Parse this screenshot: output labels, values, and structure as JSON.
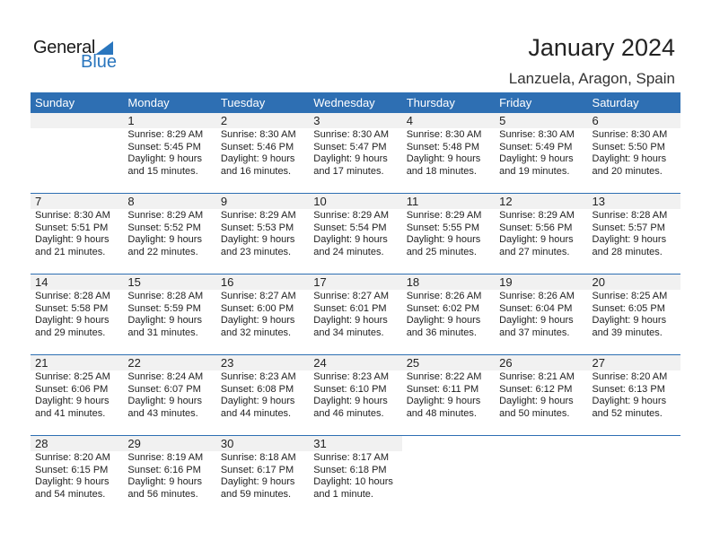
{
  "logo": {
    "text1": "General",
    "text2": "Blue"
  },
  "title": "January 2024",
  "location": "Lanzuela, Aragon, Spain",
  "days": [
    "Sunday",
    "Monday",
    "Tuesday",
    "Wednesday",
    "Thursday",
    "Friday",
    "Saturday"
  ],
  "weeks": [
    [
      null,
      {
        "d": "1",
        "sr": "Sunrise: 8:29 AM",
        "ss": "Sunset: 5:45 PM",
        "dl": "Daylight: 9 hours",
        "dm": "and 15 minutes."
      },
      {
        "d": "2",
        "sr": "Sunrise: 8:30 AM",
        "ss": "Sunset: 5:46 PM",
        "dl": "Daylight: 9 hours",
        "dm": "and 16 minutes."
      },
      {
        "d": "3",
        "sr": "Sunrise: 8:30 AM",
        "ss": "Sunset: 5:47 PM",
        "dl": "Daylight: 9 hours",
        "dm": "and 17 minutes."
      },
      {
        "d": "4",
        "sr": "Sunrise: 8:30 AM",
        "ss": "Sunset: 5:48 PM",
        "dl": "Daylight: 9 hours",
        "dm": "and 18 minutes."
      },
      {
        "d": "5",
        "sr": "Sunrise: 8:30 AM",
        "ss": "Sunset: 5:49 PM",
        "dl": "Daylight: 9 hours",
        "dm": "and 19 minutes."
      },
      {
        "d": "6",
        "sr": "Sunrise: 8:30 AM",
        "ss": "Sunset: 5:50 PM",
        "dl": "Daylight: 9 hours",
        "dm": "and 20 minutes."
      }
    ],
    [
      {
        "d": "7",
        "sr": "Sunrise: 8:30 AM",
        "ss": "Sunset: 5:51 PM",
        "dl": "Daylight: 9 hours",
        "dm": "and 21 minutes."
      },
      {
        "d": "8",
        "sr": "Sunrise: 8:29 AM",
        "ss": "Sunset: 5:52 PM",
        "dl": "Daylight: 9 hours",
        "dm": "and 22 minutes."
      },
      {
        "d": "9",
        "sr": "Sunrise: 8:29 AM",
        "ss": "Sunset: 5:53 PM",
        "dl": "Daylight: 9 hours",
        "dm": "and 23 minutes."
      },
      {
        "d": "10",
        "sr": "Sunrise: 8:29 AM",
        "ss": "Sunset: 5:54 PM",
        "dl": "Daylight: 9 hours",
        "dm": "and 24 minutes."
      },
      {
        "d": "11",
        "sr": "Sunrise: 8:29 AM",
        "ss": "Sunset: 5:55 PM",
        "dl": "Daylight: 9 hours",
        "dm": "and 25 minutes."
      },
      {
        "d": "12",
        "sr": "Sunrise: 8:29 AM",
        "ss": "Sunset: 5:56 PM",
        "dl": "Daylight: 9 hours",
        "dm": "and 27 minutes."
      },
      {
        "d": "13",
        "sr": "Sunrise: 8:28 AM",
        "ss": "Sunset: 5:57 PM",
        "dl": "Daylight: 9 hours",
        "dm": "and 28 minutes."
      }
    ],
    [
      {
        "d": "14",
        "sr": "Sunrise: 8:28 AM",
        "ss": "Sunset: 5:58 PM",
        "dl": "Daylight: 9 hours",
        "dm": "and 29 minutes."
      },
      {
        "d": "15",
        "sr": "Sunrise: 8:28 AM",
        "ss": "Sunset: 5:59 PM",
        "dl": "Daylight: 9 hours",
        "dm": "and 31 minutes."
      },
      {
        "d": "16",
        "sr": "Sunrise: 8:27 AM",
        "ss": "Sunset: 6:00 PM",
        "dl": "Daylight: 9 hours",
        "dm": "and 32 minutes."
      },
      {
        "d": "17",
        "sr": "Sunrise: 8:27 AM",
        "ss": "Sunset: 6:01 PM",
        "dl": "Daylight: 9 hours",
        "dm": "and 34 minutes."
      },
      {
        "d": "18",
        "sr": "Sunrise: 8:26 AM",
        "ss": "Sunset: 6:02 PM",
        "dl": "Daylight: 9 hours",
        "dm": "and 36 minutes."
      },
      {
        "d": "19",
        "sr": "Sunrise: 8:26 AM",
        "ss": "Sunset: 6:04 PM",
        "dl": "Daylight: 9 hours",
        "dm": "and 37 minutes."
      },
      {
        "d": "20",
        "sr": "Sunrise: 8:25 AM",
        "ss": "Sunset: 6:05 PM",
        "dl": "Daylight: 9 hours",
        "dm": "and 39 minutes."
      }
    ],
    [
      {
        "d": "21",
        "sr": "Sunrise: 8:25 AM",
        "ss": "Sunset: 6:06 PM",
        "dl": "Daylight: 9 hours",
        "dm": "and 41 minutes."
      },
      {
        "d": "22",
        "sr": "Sunrise: 8:24 AM",
        "ss": "Sunset: 6:07 PM",
        "dl": "Daylight: 9 hours",
        "dm": "and 43 minutes."
      },
      {
        "d": "23",
        "sr": "Sunrise: 8:23 AM",
        "ss": "Sunset: 6:08 PM",
        "dl": "Daylight: 9 hours",
        "dm": "and 44 minutes."
      },
      {
        "d": "24",
        "sr": "Sunrise: 8:23 AM",
        "ss": "Sunset: 6:10 PM",
        "dl": "Daylight: 9 hours",
        "dm": "and 46 minutes."
      },
      {
        "d": "25",
        "sr": "Sunrise: 8:22 AM",
        "ss": "Sunset: 6:11 PM",
        "dl": "Daylight: 9 hours",
        "dm": "and 48 minutes."
      },
      {
        "d": "26",
        "sr": "Sunrise: 8:21 AM",
        "ss": "Sunset: 6:12 PM",
        "dl": "Daylight: 9 hours",
        "dm": "and 50 minutes."
      },
      {
        "d": "27",
        "sr": "Sunrise: 8:20 AM",
        "ss": "Sunset: 6:13 PM",
        "dl": "Daylight: 9 hours",
        "dm": "and 52 minutes."
      }
    ],
    [
      {
        "d": "28",
        "sr": "Sunrise: 8:20 AM",
        "ss": "Sunset: 6:15 PM",
        "dl": "Daylight: 9 hours",
        "dm": "and 54 minutes."
      },
      {
        "d": "29",
        "sr": "Sunrise: 8:19 AM",
        "ss": "Sunset: 6:16 PM",
        "dl": "Daylight: 9 hours",
        "dm": "and 56 minutes."
      },
      {
        "d": "30",
        "sr": "Sunrise: 8:18 AM",
        "ss": "Sunset: 6:17 PM",
        "dl": "Daylight: 9 hours",
        "dm": "and 59 minutes."
      },
      {
        "d": "31",
        "sr": "Sunrise: 8:17 AM",
        "ss": "Sunset: 6:18 PM",
        "dl": "Daylight: 10 hours",
        "dm": "and 1 minute."
      },
      null,
      null,
      null
    ]
  ],
  "colors": {
    "header": "#2e6fb3",
    "brand": "#2a76be",
    "date_strip": "#f1f1f1"
  }
}
